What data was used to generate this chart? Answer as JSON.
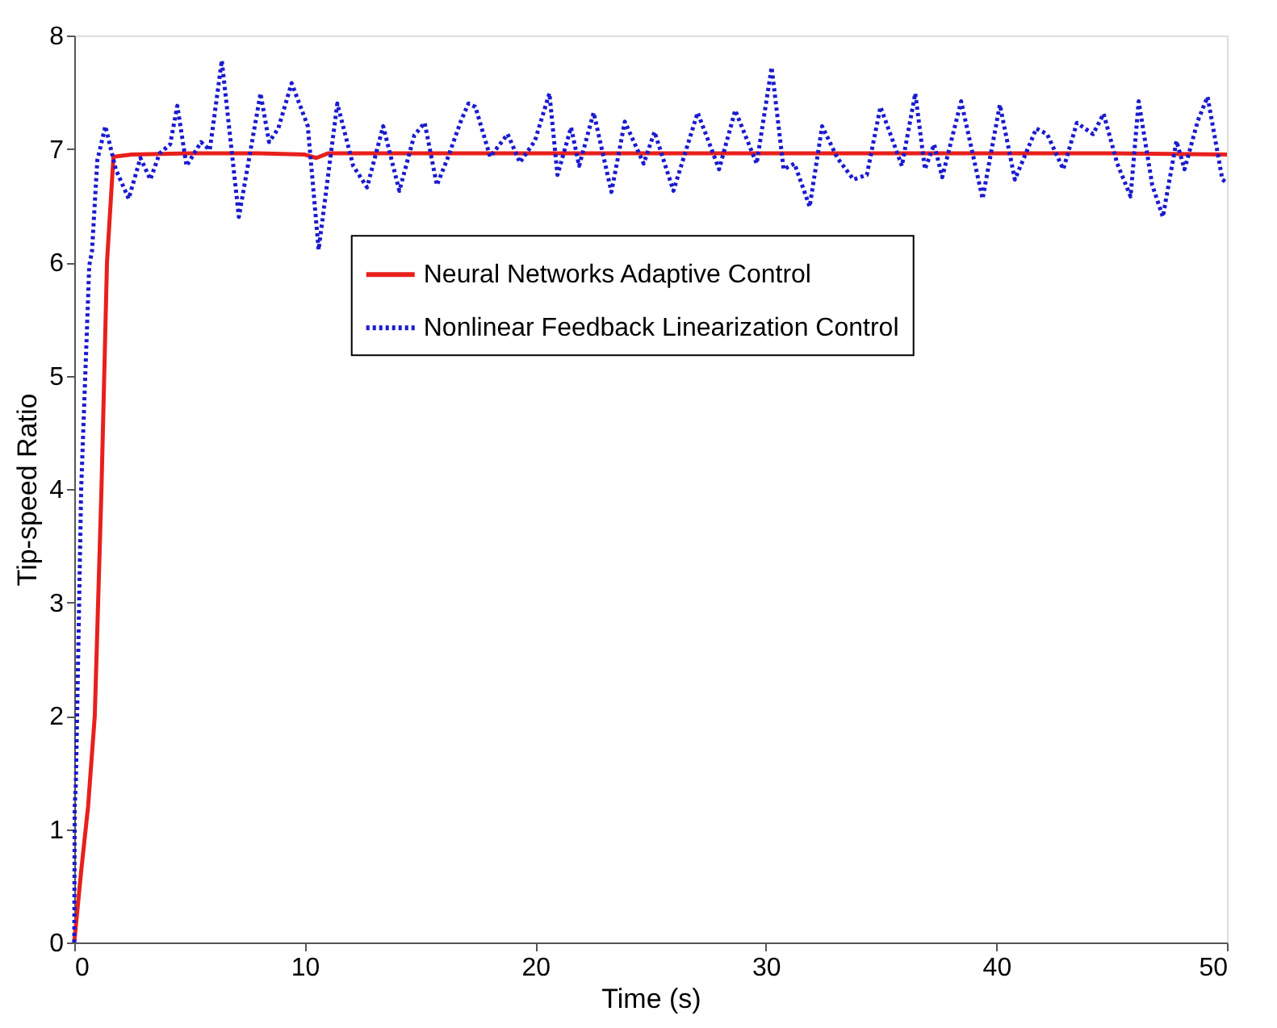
{
  "chart_data": {
    "type": "line",
    "xlabel": "Time (s)",
    "ylabel": "Tip-speed Ratio",
    "xlim": [
      0,
      50
    ],
    "xticks": [
      0,
      10,
      20,
      30,
      40,
      50
    ],
    "ylim": [
      0,
      8
    ],
    "yticks": [
      0,
      1,
      2,
      3,
      4,
      5,
      6,
      7,
      8
    ],
    "grid": false,
    "legend": "top right",
    "marker": "none",
    "series": [
      {
        "name": "Neural Networks Adaptive Control",
        "color": "#e8201c",
        "line_style": "solid",
        "x": [
          0,
          0.3,
          0.6,
          0.89,
          1.18,
          1.42,
          1.7,
          2.5,
          5,
          8,
          10,
          10.5,
          11,
          15,
          20,
          25,
          30,
          35,
          40,
          45,
          50
        ],
        "values": [
          0,
          0.63,
          1.2,
          2,
          4,
          6,
          6.93,
          6.95,
          6.96,
          6.96,
          6.95,
          6.92,
          6.96,
          6.96,
          6.96,
          6.96,
          6.96,
          6.96,
          6.96,
          6.96,
          6.95
        ]
      },
      {
        "name": "Nonlinear Feedback Linearization Control",
        "color": "#1a1ad0",
        "line_style": "dotted",
        "x": [
          0,
          0.02,
          0.07,
          0.3,
          0.65,
          0.77,
          1.0,
          1.35,
          1.8,
          2.36,
          2.87,
          3.3,
          3.7,
          4.16,
          4.47,
          4.87,
          5.5,
          5.88,
          6.4,
          7.14,
          8.08,
          8.45,
          8.85,
          9.43,
          10.13,
          10.6,
          11.41,
          12.1,
          12.7,
          13.4,
          14.1,
          14.75,
          15.2,
          15.73,
          16.2,
          16.78,
          17.1,
          17.4,
          18.04,
          18.8,
          19.33,
          19.98,
          20.61,
          20.96,
          21.55,
          21.9,
          22.53,
          23.3,
          23.88,
          24.7,
          25.17,
          25.99,
          27.04,
          27.97,
          28.67,
          29.6,
          30.25,
          30.77,
          31.24,
          31.9,
          32.44,
          33.1,
          33.8,
          34.38,
          34.97,
          35.9,
          36.48,
          36.9,
          37.3,
          37.65,
          38.47,
          39.4,
          40.15,
          40.8,
          41.73,
          42.2,
          42.9,
          43.49,
          44.19,
          44.65,
          45.24,
          45.82,
          46.17,
          46.76,
          47.22,
          47.81,
          48.16,
          48.74,
          49.16,
          49.8,
          50
        ],
        "values": [
          0,
          1.2,
          1.4,
          4,
          5.97,
          6.1,
          6.9,
          7.2,
          6.82,
          6.56,
          6.92,
          6.73,
          6.96,
          7.04,
          7.38,
          6.85,
          7.06,
          6.99,
          7.78,
          6.4,
          7.49,
          7.06,
          7.18,
          7.58,
          7.2,
          6.11,
          7.4,
          6.85,
          6.66,
          7.2,
          6.63,
          7.12,
          7.23,
          6.68,
          6.92,
          7.25,
          7.4,
          7.37,
          6.93,
          7.13,
          6.88,
          7.07,
          7.49,
          6.77,
          7.19,
          6.85,
          7.32,
          6.62,
          7.24,
          6.87,
          7.15,
          6.63,
          7.32,
          6.82,
          7.34,
          6.87,
          7.72,
          6.82,
          6.87,
          6.49,
          7.2,
          6.92,
          6.73,
          6.77,
          7.37,
          6.85,
          7.49,
          6.82,
          7.04,
          6.75,
          7.42,
          6.56,
          7.39,
          6.73,
          7.18,
          7.13,
          6.82,
          7.23,
          7.13,
          7.31,
          6.87,
          6.58,
          7.42,
          6.68,
          6.4,
          7.07,
          6.82,
          7.25,
          7.46,
          6.73,
          6.7
        ]
      }
    ]
  }
}
